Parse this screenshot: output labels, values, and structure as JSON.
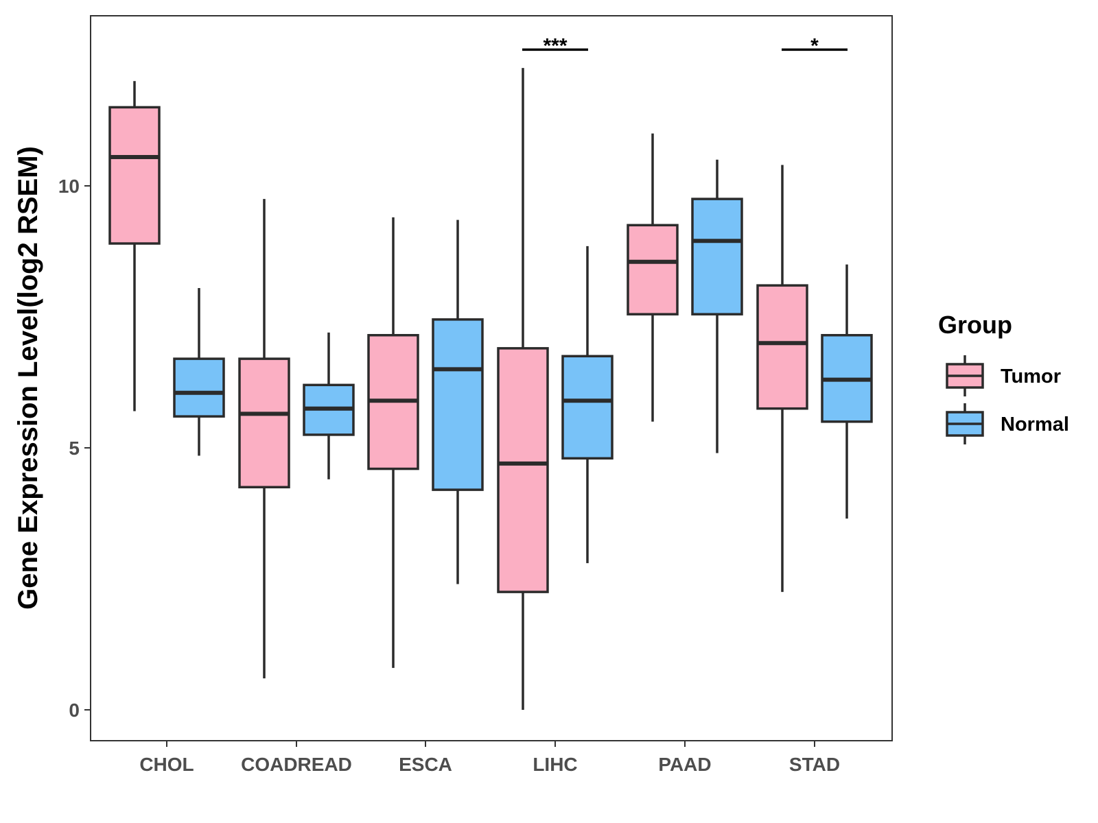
{
  "chart_data": {
    "type": "boxplot",
    "title": "",
    "xlabel": "",
    "ylabel": "Gene Expression Level(log2 RSEM)",
    "ylim": [
      -0.6,
      13.3
    ],
    "yticks": [
      0,
      5,
      10
    ],
    "grid": false,
    "categories": [
      "CHOL",
      "COADREAD",
      "ESCA",
      "LIHC",
      "PAAD",
      "STAD"
    ],
    "legend": {
      "title": "Group",
      "position": "right",
      "entries": [
        {
          "name": "Tumor",
          "color": "#FBAFC3"
        },
        {
          "name": "Normal",
          "color": "#78C2F8"
        }
      ]
    },
    "series": [
      {
        "name": "Tumor",
        "color": "#FBAFC3",
        "boxes": [
          {
            "whisker_low": 5.7,
            "q1": 8.9,
            "median": 10.55,
            "q3": 11.5,
            "whisker_high": 12.0
          },
          {
            "whisker_low": 0.6,
            "q1": 4.25,
            "median": 5.65,
            "q3": 6.7,
            "whisker_high": 9.75
          },
          {
            "whisker_low": 0.8,
            "q1": 4.6,
            "median": 5.9,
            "q3": 7.15,
            "whisker_high": 9.4
          },
          {
            "whisker_low": 0.0,
            "q1": 2.25,
            "median": 4.7,
            "q3": 6.9,
            "whisker_high": 12.25
          },
          {
            "whisker_low": 5.5,
            "q1": 7.55,
            "median": 8.55,
            "q3": 9.25,
            "whisker_high": 11.0
          },
          {
            "whisker_low": 2.25,
            "q1": 5.75,
            "median": 7.0,
            "q3": 8.1,
            "whisker_high": 10.4
          }
        ]
      },
      {
        "name": "Normal",
        "color": "#78C2F8",
        "boxes": [
          {
            "whisker_low": 4.85,
            "q1": 5.6,
            "median": 6.05,
            "q3": 6.7,
            "whisker_high": 8.05
          },
          {
            "whisker_low": 4.4,
            "q1": 5.25,
            "median": 5.75,
            "q3": 6.2,
            "whisker_high": 7.2
          },
          {
            "whisker_low": 2.4,
            "q1": 4.2,
            "median": 6.5,
            "q3": 7.45,
            "whisker_high": 9.35
          },
          {
            "whisker_low": 2.8,
            "q1": 4.8,
            "median": 5.9,
            "q3": 6.75,
            "whisker_high": 8.85
          },
          {
            "whisker_low": 4.9,
            "q1": 7.55,
            "median": 8.95,
            "q3": 9.75,
            "whisker_high": 10.5
          },
          {
            "whisker_low": 3.65,
            "q1": 5.5,
            "median": 6.3,
            "q3": 7.15,
            "whisker_high": 8.5
          }
        ]
      }
    ],
    "annotations": [
      {
        "category": "LIHC",
        "label": "***",
        "y": 12.6
      },
      {
        "category": "STAD",
        "label": "*",
        "y": 12.6
      }
    ]
  }
}
